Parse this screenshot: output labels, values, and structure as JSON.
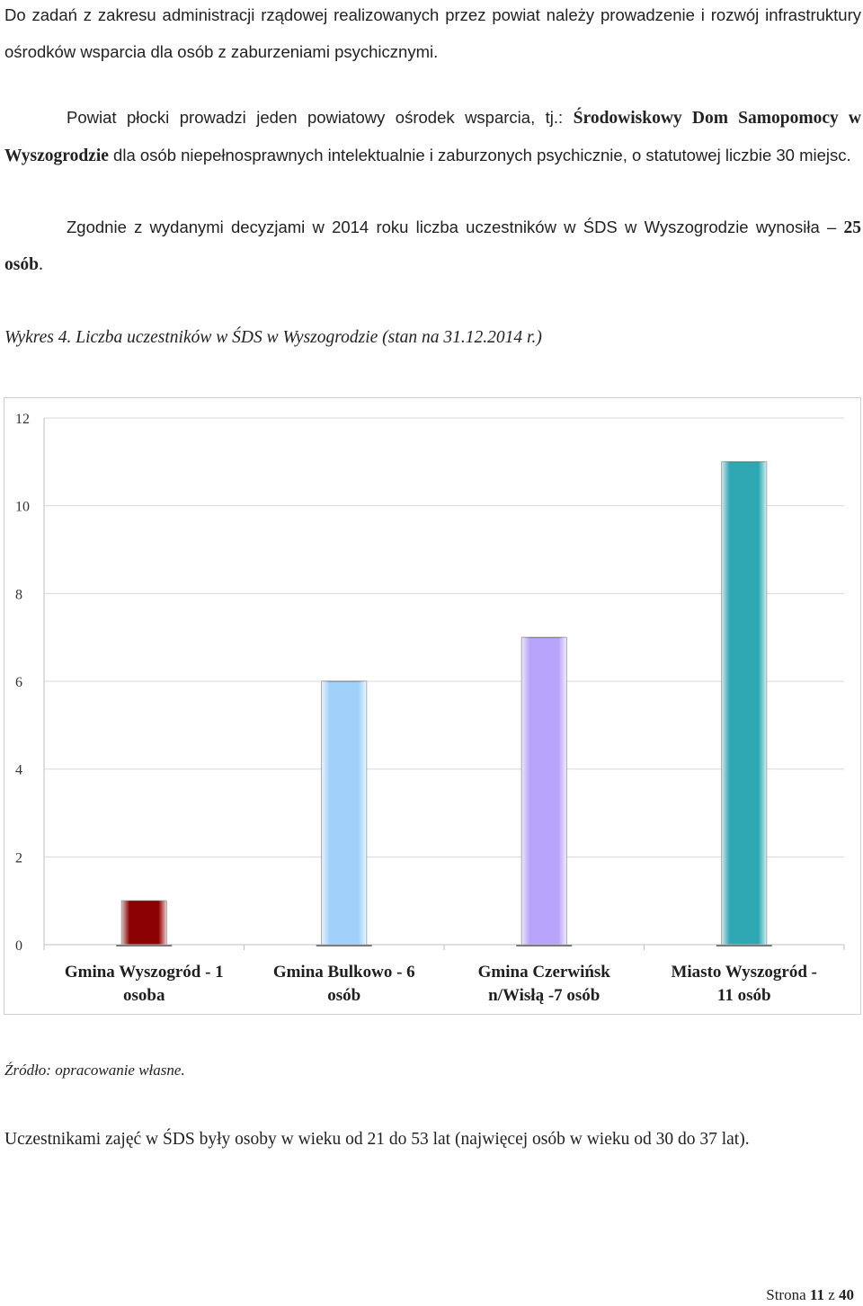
{
  "paragraph1": {
    "text": "Do zadań z zakresu administracji rządowej realizowanych przez powiat  należy prowadzenie i rozwój infrastruktury ośrodków wsparcia dla osób z zaburzeniami psychicznymi."
  },
  "paragraph2": {
    "text_before": "Powiat płocki prowadzi jeden powiatowy ośrodek wsparcia, tj.: ",
    "bold": "Środowiskowy Dom Samopomocy w Wyszogrodzie",
    "text_after": " dla osób niepełnosprawnych intelektualnie i zaburzonych psychicznie, o statutowej liczbie 30 miejsc."
  },
  "paragraph3": {
    "text_before": "Zgodnie z wydanymi decyzjami w 2014 roku liczba uczestników w ŚDS w Wyszogrodzie wynosiła – ",
    "bold": "25 osób",
    "text_after": "."
  },
  "caption": "Wykres 4. Liczba uczestników w ŚDS w Wyszogrodzie  (stan na 31.12.2014 r.)",
  "chart_data": {
    "type": "bar",
    "categories": [
      "Gmina Wyszogród - 1 osoba",
      "Gmina Bulkowo - 6 osób",
      "Gmina Czerwińsk n/Wisłą -7 osób",
      "Miasto Wyszogród - 11 osób"
    ],
    "values": [
      1,
      6,
      7,
      11
    ],
    "colors": [
      "#8b0000",
      "#9fd1fb",
      "#b8a4fb",
      "#2ea7b3"
    ],
    "ylim": [
      0,
      12
    ],
    "yticks": [
      0,
      2,
      4,
      6,
      8,
      10,
      12
    ],
    "grid": true,
    "legend": "none"
  },
  "source": "Źródło: opracowanie własne.",
  "paragraph4": {
    "text": "Uczestnikami zajęć w ŚDS były osoby w wieku od 21 do 53 lat (najwięcej osób w wieku od 30 do 37 lat)."
  },
  "footer": {
    "prefix": "Strona ",
    "page": "11",
    "middle": " z ",
    "total": "40"
  }
}
